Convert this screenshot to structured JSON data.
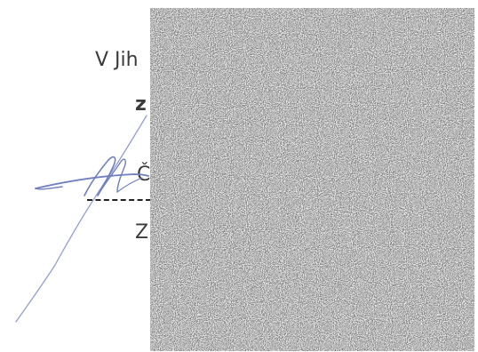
{
  "document": {
    "lines": [
      {
        "id": "line-1",
        "text": "V Jih"
      },
      {
        "id": "line-2",
        "text": "z"
      },
      {
        "id": "line-3",
        "text": "Č"
      },
      {
        "id": "line-4",
        "text": "Z"
      }
    ],
    "signature": {
      "icon": "handwritten-signature",
      "ink_color": "#6f7fc0"
    },
    "redaction": {
      "icon": "noise-redaction-block"
    }
  }
}
